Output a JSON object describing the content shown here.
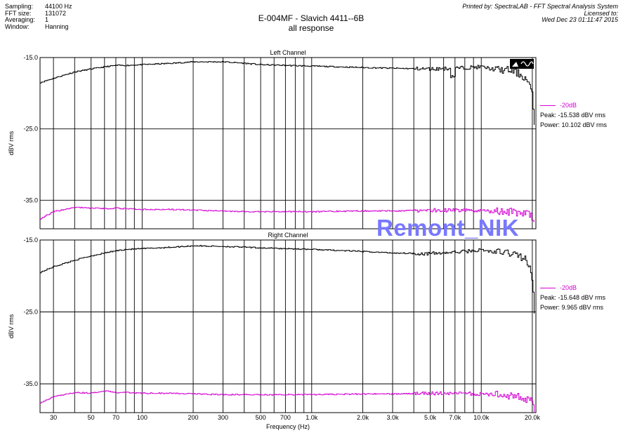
{
  "meta": {
    "sampling_label": "Sampling:",
    "sampling": "44100 Hz",
    "fft_label": "FFT size:",
    "fft": "131072",
    "avg_label": "Averaging:",
    "avg": "1",
    "window_label": "Window:",
    "window": "Hanning"
  },
  "title": "E-004MF - Slavich 4411--6B",
  "subtitle": "all response",
  "printed": {
    "line1": "Printed by: SpectraLAB - FFT Spectral Analysis System",
    "line2": "Licensed to:",
    "line3": "Wed Dec 23 01:11:47 2015"
  },
  "watermark": "Remont_NIK",
  "colors": {
    "response": "#000000",
    "reference": "#d400d4",
    "watermark": "#7878ff"
  },
  "chart_data": [
    {
      "type": "line",
      "title": "Left Channel",
      "ylabel": "dBV rms",
      "xlabel": "",
      "x_scale": "log",
      "xlim": [
        25,
        21000
      ],
      "ylim": [
        -39,
        -15
      ],
      "yticks": [
        -15.0,
        -25.0,
        -35.0
      ],
      "ytick_labels": [
        "-15.0",
        "-25.0",
        "-35.0"
      ],
      "grid": true,
      "legend": {
        "label": "-20dB",
        "placement": "right"
      },
      "peak_text": "Peak: -15.538 dBV rms",
      "power_text": "Power: 10.102 dBV rms",
      "series": [
        {
          "color": "#000000",
          "x": [
            25,
            30,
            40,
            50,
            60,
            70,
            80,
            100,
            150,
            200,
            300,
            400,
            500,
            700,
            1000,
            2000,
            3000,
            5000,
            7000,
            10000,
            12000,
            15000,
            17000,
            18000,
            19000,
            20000,
            20500
          ],
          "y": [
            -18.5,
            -17.9,
            -17.0,
            -16.6,
            -16.3,
            -16.1,
            -16.1,
            -16.0,
            -15.8,
            -15.6,
            -15.6,
            -15.8,
            -16.0,
            -16.1,
            -16.2,
            -16.4,
            -16.5,
            -16.6,
            -16.5,
            -16.3,
            -16.7,
            -16.8,
            -17.4,
            -17.9,
            -18.6,
            -20.6,
            -24.5
          ]
        },
        {
          "name": "-20dB",
          "color": "#d400d4",
          "x": [
            25,
            30,
            40,
            50,
            60,
            70,
            80,
            100,
            150,
            200,
            300,
            400,
            500,
            700,
            1000,
            2000,
            3000,
            5000,
            7000,
            10000,
            15000,
            18000,
            20000,
            20500
          ],
          "y": [
            -37.6,
            -36.6,
            -36.0,
            -36.1,
            -36.2,
            -36.1,
            -36.2,
            -36.3,
            -36.3,
            -36.4,
            -36.5,
            -36.6,
            -36.6,
            -36.6,
            -36.6,
            -36.5,
            -36.5,
            -36.4,
            -36.4,
            -36.5,
            -36.6,
            -36.9,
            -37.3,
            -38.5
          ]
        }
      ]
    },
    {
      "type": "line",
      "title": "Right Channel",
      "ylabel": "dBV rms",
      "xlabel": "Frequency (Hz)",
      "x_scale": "log",
      "xlim": [
        25,
        21000
      ],
      "ylim": [
        -39,
        -15
      ],
      "yticks": [
        -15.0,
        -25.0,
        -35.0
      ],
      "ytick_labels": [
        "-15.0",
        "-25.0",
        "-35.0"
      ],
      "xticks": [
        30,
        50,
        70,
        100,
        200,
        300,
        500,
        700,
        1000,
        2000,
        3000,
        5000,
        7000,
        10000,
        20000
      ],
      "xtick_labels": [
        "30",
        "50",
        "70",
        "100",
        "200",
        "300",
        "500",
        "700",
        "1.0k",
        "2.0k",
        "3.0k",
        "5.0k",
        "7.0k",
        "10.0k",
        "20.0k"
      ],
      "grid": true,
      "legend": {
        "label": "-20dB",
        "placement": "right"
      },
      "peak_text": "Peak: -15.648 dBV rms",
      "power_text": "Power: 9.965 dBV rms",
      "series": [
        {
          "color": "#000000",
          "x": [
            25,
            30,
            40,
            50,
            60,
            70,
            80,
            100,
            150,
            200,
            300,
            400,
            500,
            700,
            1000,
            2000,
            3000,
            5000,
            7000,
            10000,
            12000,
            15000,
            17000,
            18000,
            19000,
            20000,
            20500
          ],
          "y": [
            -19.5,
            -18.7,
            -17.8,
            -17.2,
            -16.8,
            -16.5,
            -16.3,
            -16.2,
            -16.0,
            -15.8,
            -15.9,
            -16.0,
            -16.1,
            -16.2,
            -16.3,
            -16.6,
            -16.8,
            -16.9,
            -16.7,
            -16.4,
            -16.7,
            -16.8,
            -17.3,
            -17.6,
            -18.6,
            -20.8,
            -24.8
          ]
        },
        {
          "name": "-20dB",
          "color": "#d400d4",
          "x": [
            25,
            30,
            40,
            50,
            60,
            70,
            80,
            100,
            150,
            200,
            300,
            400,
            500,
            700,
            1000,
            2000,
            3000,
            5000,
            7000,
            10000,
            15000,
            18000,
            20000,
            20500
          ],
          "y": [
            -37.6,
            -36.8,
            -36.2,
            -36.3,
            -36.0,
            -36.2,
            -36.2,
            -36.3,
            -36.3,
            -36.4,
            -36.5,
            -36.5,
            -36.5,
            -36.5,
            -36.5,
            -36.4,
            -36.4,
            -36.3,
            -36.3,
            -36.4,
            -36.7,
            -37.0,
            -37.4,
            -39.0
          ]
        }
      ]
    }
  ]
}
